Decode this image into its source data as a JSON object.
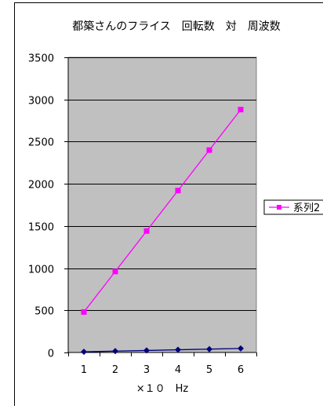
{
  "chart_data": {
    "type": "line",
    "title": "都築さんのフライス　回転数　対　周波数",
    "xlabel": "×１０　Hz",
    "ylabel": "",
    "categories": [
      "1",
      "2",
      "3",
      "4",
      "5",
      "6"
    ],
    "ylim": [
      0,
      3500
    ],
    "yticks": [
      0,
      500,
      1000,
      1500,
      2000,
      2500,
      3000,
      3500
    ],
    "grid": true,
    "plot_background": "#c0c0c0",
    "legend_position": "right",
    "series": [
      {
        "values": [
          8,
          16,
          24,
          32,
          40,
          48
        ],
        "color": "#000080",
        "marker": "diamond"
      },
      {
        "name": "系列2",
        "values": [
          480,
          960,
          1440,
          1920,
          2400,
          2880
        ],
        "color": "#ff00ff",
        "marker": "square"
      }
    ]
  }
}
